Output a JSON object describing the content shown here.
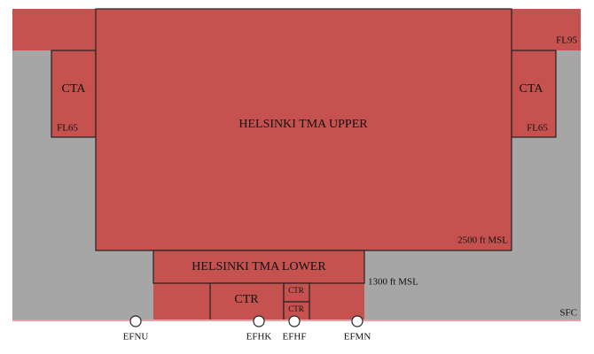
{
  "zones": {
    "cta_left": {
      "label": "CTA",
      "floor": "FL65"
    },
    "cta_right": {
      "label": "CTA",
      "floor": "FL65"
    },
    "top_level": "FL95",
    "tma_upper": {
      "label": "HELSINKI TMA UPPER",
      "floor": "2500 ft MSL"
    },
    "tma_lower": {
      "label": "HELSINKI TMA LOWER",
      "floor": "1300 ft MSL"
    },
    "ctr": {
      "label": "CTR"
    },
    "ctr_small_top": {
      "label": "CTR"
    },
    "ctr_small_bottom": {
      "label": "CTR"
    },
    "surface": "SFC"
  },
  "airports": [
    "EFNU",
    "EFHK",
    "EFHF",
    "EFMN"
  ]
}
